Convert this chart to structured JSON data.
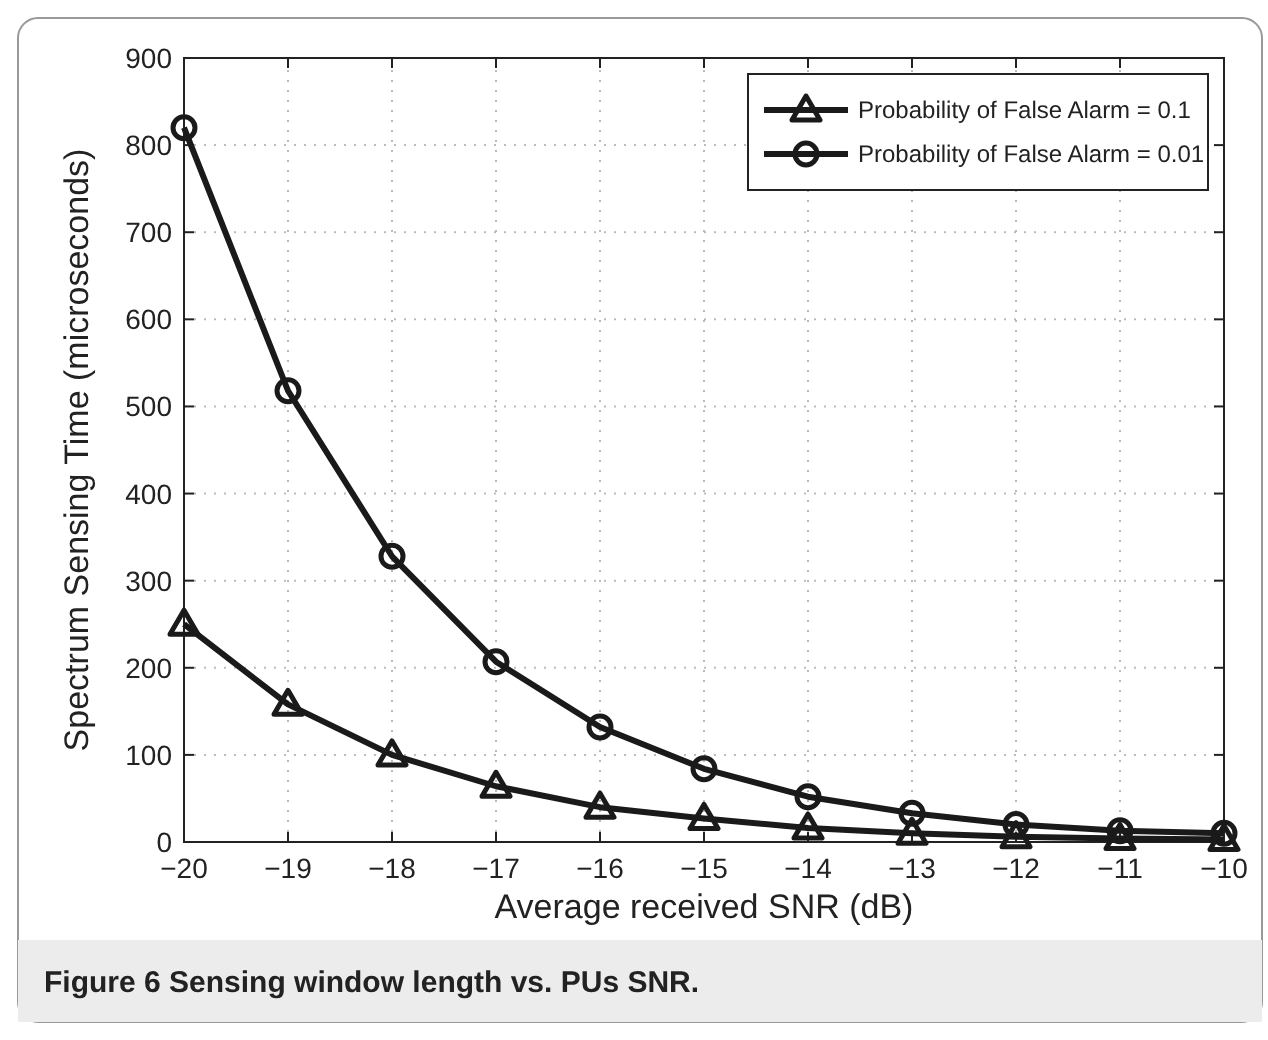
{
  "chart_data": {
    "type": "line",
    "xlabel": "Average received SNR (dB)",
    "ylabel": "Spectrum Sensing Time (microseconds)",
    "x": [
      -20,
      -19,
      -18,
      -17,
      -16,
      -15,
      -14,
      -13,
      -12,
      -11,
      -10
    ],
    "series": [
      {
        "name": "Probability of False Alarm = 0.1",
        "color": "#1a1a1a",
        "marker": "triangle",
        "values": [
          250,
          158,
          100,
          64,
          40,
          27,
          16,
          10,
          6,
          4,
          3
        ]
      },
      {
        "name": "Probability of False Alarm = 0.01",
        "color": "#1a1a1a",
        "marker": "circle",
        "values": [
          820,
          518,
          328,
          207,
          132,
          84,
          52,
          33,
          20,
          13,
          10
        ]
      }
    ],
    "xlim": [
      -20,
      -10
    ],
    "xticks": [
      -20,
      -19,
      -18,
      -17,
      -16,
      -15,
      -14,
      -13,
      -12,
      -11,
      -10
    ],
    "ylim": [
      0,
      900
    ],
    "yticks": [
      0,
      100,
      200,
      300,
      400,
      500,
      600,
      700,
      800,
      900
    ],
    "grid": true,
    "legend": "top right",
    "line_style": "solid",
    "annotations": [
      "Figure 6 Sensing window length vs. PUs SNR."
    ]
  }
}
